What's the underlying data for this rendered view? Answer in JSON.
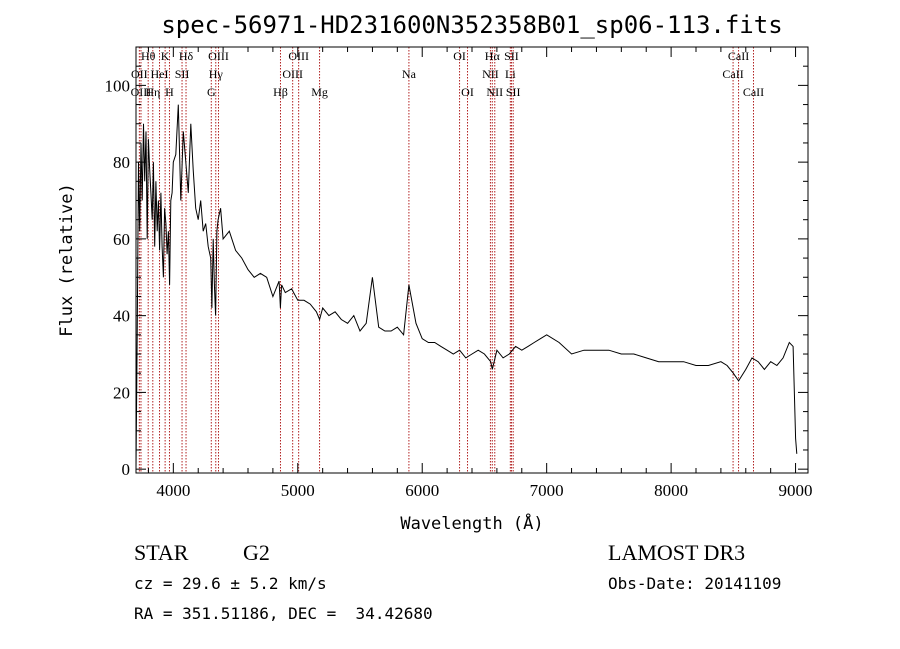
{
  "chart_data": {
    "type": "line",
    "title": "spec-56971-HD231600N352358B01_sp06-113.fits",
    "xlabel": "Wavelength (Å)",
    "ylabel": "Flux (relative)",
    "xlim": [
      3700,
      9100
    ],
    "ylim": [
      -1,
      110
    ],
    "xticks": [
      4000,
      5000,
      6000,
      7000,
      8000,
      9000
    ],
    "yticks": [
      0,
      20,
      40,
      60,
      80,
      100
    ],
    "line_color": "#000000",
    "marker_color": "#b22222",
    "spectral_lines": [
      {
        "name": "Hθ",
        "x": 3798,
        "row": 0
      },
      {
        "name": "OII",
        "x": 3727,
        "row": 1
      },
      {
        "name": "OIII",
        "x": 3740,
        "row": 2
      },
      {
        "name": "K",
        "x": 3934,
        "row": 0
      },
      {
        "name": "HeI",
        "x": 3889,
        "row": 1
      },
      {
        "name": "Hη",
        "x": 3835,
        "row": 2
      },
      {
        "name": "Hδ",
        "x": 4102,
        "row": 0
      },
      {
        "name": "SII",
        "x": 4070,
        "row": 1
      },
      {
        "name": "H",
        "x": 3969,
        "row": 2
      },
      {
        "name": "OIII",
        "x": 4363,
        "row": 0
      },
      {
        "name": "Hγ",
        "x": 4341,
        "row": 1
      },
      {
        "name": "G",
        "x": 4305,
        "row": 2
      },
      {
        "name": "OIII",
        "x": 5007,
        "row": 0
      },
      {
        "name": "OIII",
        "x": 4959,
        "row": 1
      },
      {
        "name": "Hβ",
        "x": 4861,
        "row": 2
      },
      {
        "name": "Mg",
        "x": 5175,
        "row": 2
      },
      {
        "name": "Na",
        "x": 5893,
        "row": 1
      },
      {
        "name": "OI",
        "x": 6300,
        "row": 0
      },
      {
        "name": "OI",
        "x": 6364,
        "row": 2
      },
      {
        "name": "Hα",
        "x": 6563,
        "row": 0
      },
      {
        "name": "NII",
        "x": 6548,
        "row": 1
      },
      {
        "name": "NII",
        "x": 6583,
        "row": 2
      },
      {
        "name": "SII",
        "x": 6717,
        "row": 0
      },
      {
        "name": "Li",
        "x": 6708,
        "row": 1
      },
      {
        "name": "SII",
        "x": 6731,
        "row": 2
      },
      {
        "name": "CaII",
        "x": 8542,
        "row": 0
      },
      {
        "name": "CaII",
        "x": 8498,
        "row": 1
      },
      {
        "name": "CaII",
        "x": 8662,
        "row": 2
      }
    ],
    "spectrum": {
      "x": [
        3700,
        3710,
        3720,
        3730,
        3740,
        3750,
        3760,
        3770,
        3780,
        3790,
        3800,
        3810,
        3820,
        3830,
        3840,
        3850,
        3860,
        3870,
        3880,
        3890,
        3900,
        3910,
        3920,
        3930,
        3940,
        3950,
        3960,
        3970,
        3980,
        3990,
        4000,
        4020,
        4040,
        4060,
        4080,
        4100,
        4120,
        4140,
        4160,
        4180,
        4200,
        4220,
        4240,
        4260,
        4280,
        4300,
        4310,
        4320,
        4330,
        4340,
        4350,
        4360,
        4380,
        4400,
        4450,
        4500,
        4550,
        4600,
        4650,
        4700,
        4750,
        4800,
        4850,
        4860,
        4870,
        4900,
        4950,
        5000,
        5050,
        5100,
        5150,
        5175,
        5200,
        5250,
        5300,
        5350,
        5400,
        5450,
        5500,
        5550,
        5600,
        5650,
        5700,
        5750,
        5800,
        5850,
        5893,
        5950,
        6000,
        6050,
        6100,
        6150,
        6200,
        6250,
        6300,
        6350,
        6400,
        6450,
        6500,
        6550,
        6563,
        6600,
        6650,
        6700,
        6750,
        6800,
        6850,
        6900,
        6950,
        7000,
        7100,
        7200,
        7300,
        7400,
        7500,
        7600,
        7700,
        7800,
        7900,
        8000,
        8100,
        8200,
        8300,
        8400,
        8450,
        8500,
        8542,
        8600,
        8650,
        8700,
        8750,
        8800,
        8850,
        8900,
        8950,
        8980,
        9000,
        9010
      ],
      "y": [
        0,
        35,
        80,
        62,
        85,
        70,
        90,
        75,
        88,
        60,
        86,
        78,
        72,
        65,
        80,
        58,
        75,
        62,
        70,
        57,
        72,
        58,
        50,
        68,
        64,
        56,
        62,
        48,
        70,
        72,
        80,
        82,
        95,
        70,
        88,
        80,
        72,
        90,
        78,
        68,
        65,
        70,
        62,
        64,
        58,
        55,
        42,
        60,
        48,
        40,
        62,
        65,
        68,
        60,
        62,
        57,
        55,
        52,
        50,
        51,
        50,
        45,
        49,
        42,
        48,
        46,
        47,
        44,
        44,
        43,
        41,
        39,
        42,
        40,
        41,
        39,
        38,
        40,
        36,
        38,
        50,
        37,
        36,
        36,
        37,
        35,
        48,
        38,
        34,
        33,
        33,
        32,
        31,
        30,
        31,
        29,
        30,
        31,
        30,
        28,
        26,
        31,
        29,
        30,
        32,
        31,
        32,
        33,
        34,
        35,
        33,
        30,
        31,
        31,
        31,
        30,
        30,
        29,
        28,
        28,
        28,
        27,
        27,
        28,
        27,
        25,
        23,
        26,
        29,
        28,
        26,
        28,
        27,
        29,
        33,
        32,
        8,
        4
      ]
    }
  },
  "info": {
    "object_type": "STAR",
    "subclass": "G2",
    "release": "LAMOST DR3",
    "cz": "cz = 29.6 ± 5.2 km/s",
    "obs_date": "Obs-Date: 20141109",
    "coords": "RA = 351.51186, DEC =  34.42680"
  }
}
